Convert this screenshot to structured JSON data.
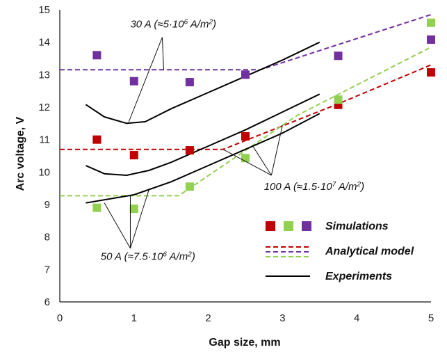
{
  "chart_data": {
    "type": "scatter",
    "xlabel": "Gap size, mm",
    "ylabel": "Arc voltage, V",
    "xlim": [
      0,
      5
    ],
    "ylim": [
      6,
      15
    ],
    "xticks": [
      "0",
      "1",
      "2",
      "3",
      "4",
      "5"
    ],
    "yticks": [
      "6",
      "7",
      "8",
      "9",
      "10",
      "11",
      "12",
      "13",
      "14",
      "15"
    ],
    "grid": false,
    "colors": {
      "red": "#c00000",
      "green": "#92d050",
      "purple": "#7030a0",
      "black": "#000000"
    },
    "simulations": [
      {
        "id": "sim-100A",
        "color": "#c00000",
        "x": [
          0.5,
          1.0,
          1.75,
          2.5,
          3.75,
          5.0
        ],
        "y": [
          11.0,
          10.52,
          10.67,
          11.1,
          12.07,
          13.07
        ]
      },
      {
        "id": "sim-50A",
        "color": "#92d050",
        "x": [
          0.5,
          1.0,
          1.75,
          2.5,
          3.75,
          5.0
        ],
        "y": [
          8.9,
          8.87,
          9.55,
          10.43,
          12.23,
          14.6
        ]
      },
      {
        "id": "sim-30A",
        "color": "#7030a0",
        "x": [
          0.5,
          1.0,
          1.75,
          2.5,
          3.75,
          5.0
        ],
        "y": [
          13.6,
          12.8,
          12.77,
          13.0,
          13.58,
          14.08
        ]
      }
    ],
    "analytical": [
      {
        "id": "analytical-100A",
        "color": "#c00000",
        "x": [
          0.0,
          2.2,
          3.75,
          5.0
        ],
        "y": [
          10.7,
          10.7,
          12.1,
          13.3
        ]
      },
      {
        "id": "analytical-50A",
        "color": "#92d050",
        "x": [
          0.0,
          1.6,
          3.2,
          5.0
        ],
        "y": [
          9.27,
          9.27,
          11.75,
          13.85
        ]
      },
      {
        "id": "analytical-30A",
        "color": "#7030a0",
        "x": [
          0.0,
          2.7,
          5.0
        ],
        "y": [
          13.15,
          13.15,
          14.85
        ]
      }
    ],
    "experiments": [
      {
        "id": "exp-30A",
        "color": "#000000",
        "x": [
          0.35,
          0.6,
          0.9,
          1.15,
          1.5,
          2.0,
          2.5,
          3.0,
          3.5
        ],
        "y": [
          12.08,
          11.7,
          11.5,
          11.55,
          11.95,
          12.45,
          12.95,
          13.45,
          14.0
        ]
      },
      {
        "id": "exp-100A",
        "color": "#000000",
        "x": [
          0.35,
          0.6,
          0.9,
          1.2,
          1.5,
          2.0,
          2.5,
          3.0,
          3.5
        ],
        "y": [
          10.2,
          9.95,
          9.9,
          10.05,
          10.3,
          10.8,
          11.3,
          11.85,
          12.4
        ]
      },
      {
        "id": "exp-50A",
        "color": "#000000",
        "x": [
          0.35,
          1.0,
          1.5,
          2.0,
          2.5,
          3.0,
          3.5
        ],
        "y": [
          9.05,
          9.3,
          9.7,
          10.2,
          10.7,
          11.2,
          11.8
        ]
      }
    ],
    "legend": {
      "position": "lower-right",
      "entries": [
        {
          "kind": "squares",
          "label": "Simulations"
        },
        {
          "kind": "dashed",
          "label": "Analytical model"
        },
        {
          "kind": "solid",
          "label": "Experiments"
        }
      ]
    },
    "annotations": [
      {
        "id": "annot-30A",
        "text": "30 A (≈5·10",
        "sup": "6",
        "tail": " A/m",
        "sup2": "2",
        "close": ")",
        "x": 0.95,
        "y": 14.45,
        "pointers": [
          {
            "from": [
              1.38,
              14.15
            ],
            "to": [
              0.93,
              11.55
            ]
          },
          {
            "from": [
              1.38,
              14.15
            ],
            "to": [
              1.4,
              13.15
            ]
          }
        ]
      },
      {
        "id": "annot-100A",
        "text": "100 A (≈1.5·10",
        "sup": "7",
        "tail": " A/m",
        "sup2": "2",
        "close": ")",
        "x": 2.75,
        "y": 9.45,
        "pointers": [
          {
            "from": [
              2.85,
              9.9
            ],
            "to": [
              2.2,
              10.7
            ]
          },
          {
            "from": [
              2.85,
              9.9
            ],
            "to": [
              2.6,
              10.8
            ]
          },
          {
            "from": [
              2.85,
              9.9
            ],
            "to": [
              3.0,
              11.45
            ]
          }
        ]
      },
      {
        "id": "annot-50A",
        "text": "50 A (≈7.5·10",
        "sup": "6",
        "tail": " A/m",
        "sup2": "2",
        "close": ")",
        "x": 0.55,
        "y": 7.3,
        "pointers": [
          {
            "from": [
              0.95,
              7.65
            ],
            "to": [
              0.6,
              9.05
            ]
          },
          {
            "from": [
              0.95,
              7.65
            ],
            "to": [
              0.95,
              9.27
            ]
          },
          {
            "from": [
              0.95,
              7.65
            ],
            "to": [
              1.2,
              9.45
            ]
          }
        ]
      }
    ]
  }
}
